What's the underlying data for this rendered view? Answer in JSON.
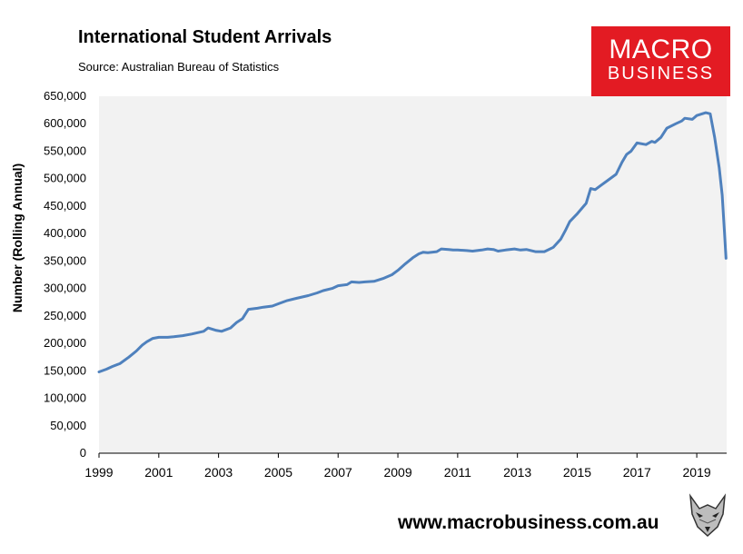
{
  "header": {
    "title": "International Student Arrivals",
    "source": "Source: Australian Bureau of Statistics"
  },
  "logo": {
    "line1": "MACRO",
    "line2": "BUSINESS",
    "color": "#e31b23"
  },
  "footer": {
    "url": "www.macrobusiness.com.au"
  },
  "chart_data": {
    "type": "line",
    "title": "International Student Arrivals",
    "xlabel": "",
    "ylabel": "Number (Rolling Annual)",
    "ylim": [
      0,
      650000
    ],
    "xlim": [
      1999.0,
      2020.0
    ],
    "grid": false,
    "plot_background": "#f2f2f2",
    "line_color": "#4f81bd",
    "x_ticks": [
      "1999",
      "2001",
      "2003",
      "2005",
      "2007",
      "2009",
      "2011",
      "2013",
      "2015",
      "2017",
      "2019"
    ],
    "y_ticks": [
      "0",
      "50,000",
      "100,000",
      "150,000",
      "200,000",
      "250,000",
      "300,000",
      "350,000",
      "400,000",
      "450,000",
      "500,000",
      "550,000",
      "600,000",
      "650,000"
    ],
    "series": [
      {
        "x": [
          1999.0,
          1999.25,
          1999.45,
          1999.7,
          2000.0,
          2000.25,
          2000.45,
          2000.6,
          2000.8,
          2001.0,
          2001.3,
          2001.5,
          2001.8,
          2002.1,
          2002.5,
          2002.65,
          2002.9,
          2003.1,
          2003.4,
          2003.6,
          2003.8,
          2004.0,
          2004.3,
          2004.5,
          2004.8,
          2005.0,
          2005.3,
          2005.6,
          2006.0,
          2006.3,
          2006.5,
          2006.8,
          2007.0,
          2007.3,
          2007.45,
          2007.7,
          2007.9,
          2008.2,
          2008.5,
          2008.8,
          2009.0,
          2009.25,
          2009.5,
          2009.7,
          2009.85,
          2010.0,
          2010.3,
          2010.45,
          2010.7,
          2010.85,
          2011.0,
          2011.3,
          2011.5,
          2011.8,
          2012.0,
          2012.2,
          2012.35,
          2012.6,
          2012.9,
          2013.1,
          2013.3,
          2013.6,
          2013.9,
          2014.2,
          2014.45,
          2014.6,
          2014.75,
          2015.0,
          2015.3,
          2015.45,
          2015.6,
          2015.8,
          2016.0,
          2016.3,
          2016.5,
          2016.65,
          2016.8,
          2017.0,
          2017.3,
          2017.5,
          2017.6,
          2017.8,
          2018.0,
          2018.3,
          2018.5,
          2018.6,
          2018.85,
          2019.0,
          2019.3,
          2019.45,
          2019.6,
          2019.75,
          2019.85,
          2019.93,
          2019.98
        ],
        "y": [
          148000,
          153000,
          158000,
          163000,
          175000,
          186000,
          197000,
          203000,
          209000,
          211000,
          211000,
          212000,
          214000,
          217000,
          222000,
          228000,
          224000,
          222000,
          228000,
          238000,
          245000,
          262000,
          264000,
          266000,
          268000,
          272000,
          278000,
          282000,
          287000,
          292000,
          296000,
          300000,
          305000,
          307000,
          312000,
          311000,
          312000,
          313000,
          318000,
          325000,
          333000,
          345000,
          356000,
          363000,
          366000,
          365000,
          367000,
          372000,
          371000,
          370000,
          370000,
          369000,
          368000,
          370000,
          372000,
          371000,
          368000,
          370000,
          372000,
          370000,
          371000,
          367000,
          367000,
          375000,
          390000,
          405000,
          422000,
          436000,
          455000,
          482000,
          480000,
          488000,
          496000,
          508000,
          530000,
          544000,
          550000,
          565000,
          562000,
          568000,
          566000,
          575000,
          592000,
          600000,
          605000,
          610000,
          608000,
          615000,
          620000,
          618000,
          575000,
          520000,
          470000,
          400000,
          355000
        ]
      }
    ]
  }
}
